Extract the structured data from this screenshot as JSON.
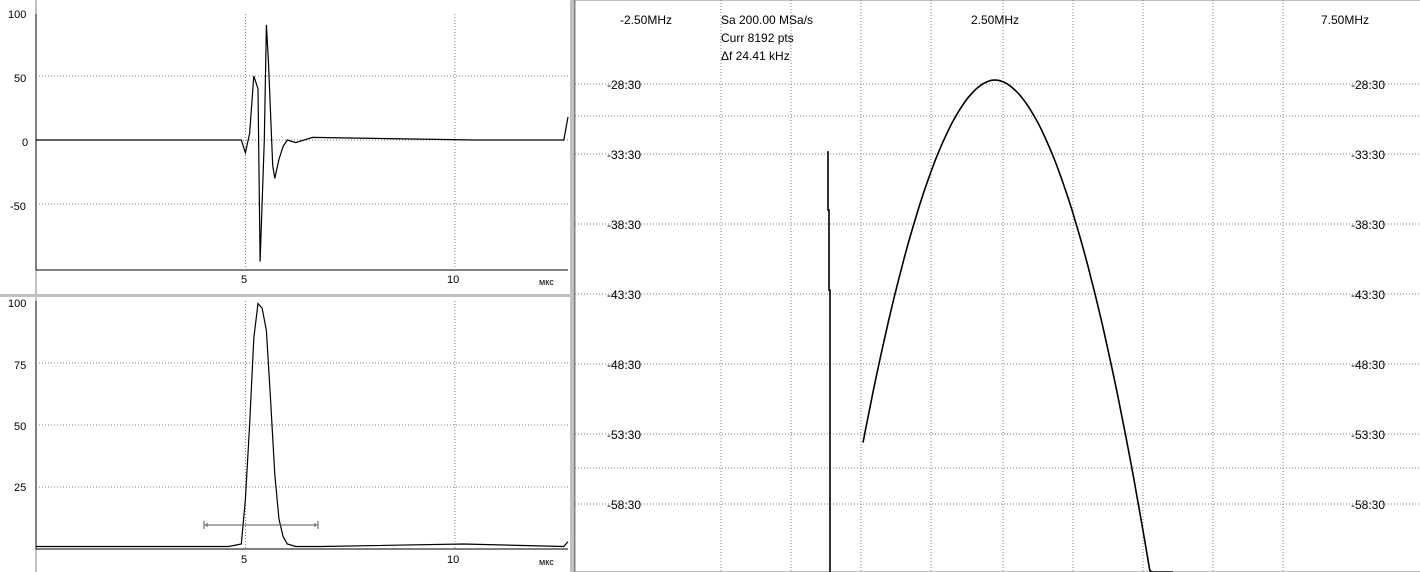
{
  "top_plot": {
    "y_ticks": [
      "100",
      "50",
      "0",
      "-50"
    ],
    "x_ticks": [
      "5",
      "10"
    ],
    "x_unit": "мкс"
  },
  "bottom_plot": {
    "y_ticks": [
      "100",
      "75",
      "50",
      "25"
    ],
    "x_ticks": [
      "5",
      "10"
    ],
    "x_unit": "мкс"
  },
  "spectrum": {
    "freq_labels": [
      "-2.50MHz",
      "2.50MHz",
      "7.50MHz"
    ],
    "info_lines": [
      "Sa 200.00 MSa/s",
      "Curr 8192 pts",
      "Δf 24.41 kHz"
    ],
    "level_labels": [
      "-28:30",
      "-33:30",
      "-38:30",
      "-43:30",
      "-48:30",
      "-53:30",
      "-58:30"
    ]
  },
  "chart_data": [
    {
      "type": "line",
      "title": "",
      "xlabel": "мкс",
      "ylabel": "",
      "xlim": [
        0,
        12.7
      ],
      "ylim": [
        -100,
        100
      ],
      "series": [
        {
          "x": [
            0,
            4.9,
            5.0,
            5.1,
            5.2,
            5.3,
            5.35,
            5.45,
            5.5,
            5.55,
            5.65,
            5.7,
            5.8,
            5.9,
            6.0,
            6.2,
            6.6,
            10.5,
            12.6,
            12.7
          ],
          "y": [
            0,
            0,
            -10,
            5,
            50,
            40,
            -95,
            0,
            90,
            60,
            -20,
            -30,
            -15,
            -5,
            0,
            -2,
            2,
            0,
            0,
            18
          ]
        }
      ]
    },
    {
      "type": "line",
      "title": "",
      "xlabel": "мкс",
      "ylabel": "",
      "xlim": [
        0,
        12.7
      ],
      "ylim": [
        0,
        100
      ],
      "series": [
        {
          "x": [
            0,
            4.6,
            4.9,
            5.0,
            5.1,
            5.2,
            5.3,
            5.4,
            5.5,
            5.6,
            5.7,
            5.8,
            5.9,
            6.0,
            6.2,
            6.8,
            10.2,
            12.6,
            12.7
          ],
          "y": [
            1,
            1,
            2,
            20,
            50,
            85,
            99,
            97,
            88,
            60,
            30,
            12,
            5,
            2,
            1,
            1,
            2,
            1,
            3
          ]
        }
      ]
    }
  ]
}
